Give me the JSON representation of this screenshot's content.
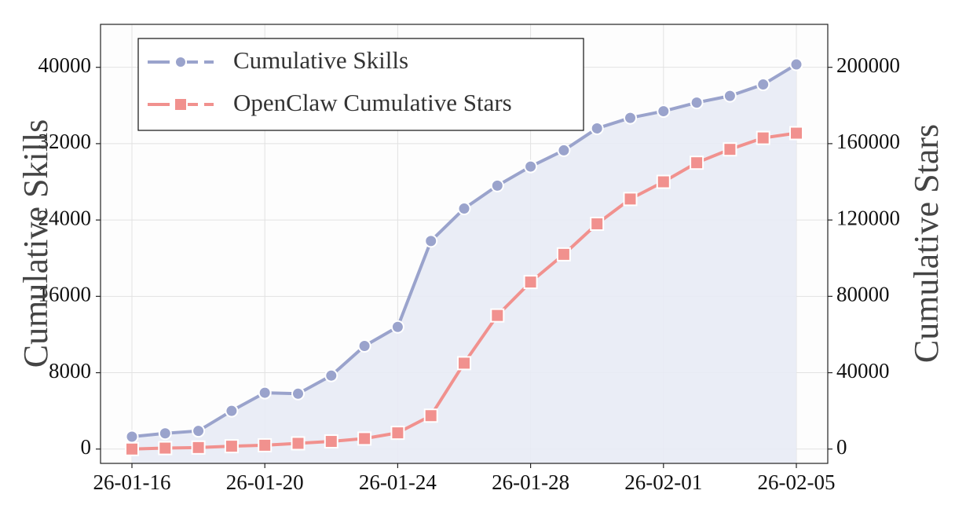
{
  "chart_data": {
    "type": "line",
    "x": [
      "26-01-16",
      "26-01-17",
      "26-01-18",
      "26-01-19",
      "26-01-20",
      "26-01-21",
      "26-01-22",
      "26-01-23",
      "26-01-24",
      "26-01-25",
      "26-01-26",
      "26-01-27",
      "26-01-28",
      "26-01-29",
      "26-01-30",
      "26-01-31",
      "26-02-01",
      "26-02-02",
      "26-02-03",
      "26-02-04",
      "26-02-05"
    ],
    "x_ticks": [
      "26-01-16",
      "26-01-20",
      "26-01-24",
      "26-01-28",
      "26-02-01",
      "26-02-05"
    ],
    "series": [
      {
        "name": "Cumulative Skills",
        "axis": "left",
        "marker": "circle",
        "color": "#9aa3cc",
        "fill": "#e8ebf5",
        "values": [
          1300,
          1650,
          1900,
          4000,
          5900,
          5800,
          7700,
          10800,
          12800,
          21800,
          25200,
          27600,
          29600,
          31300,
          33600,
          34700,
          35400,
          36300,
          37000,
          38200,
          40300
        ]
      },
      {
        "name": "OpenClaw Cumulative Stars",
        "axis": "right",
        "marker": "square",
        "color": "#f1918e",
        "values": [
          0,
          500,
          800,
          1500,
          2000,
          3000,
          4000,
          5500,
          8500,
          17500,
          45000,
          70000,
          87500,
          102000,
          118000,
          131000,
          140000,
          150000,
          157000,
          163000,
          165500
        ]
      }
    ],
    "y_left": {
      "label": "Cumulative Skills",
      "ticks": [
        0,
        8000,
        16000,
        24000,
        32000,
        40000
      ],
      "lim": [
        -1500,
        44500
      ]
    },
    "y_right": {
      "label": "Cumulative Stars",
      "ticks": [
        0,
        40000,
        80000,
        120000,
        160000,
        200000
      ],
      "lim": [
        -7500,
        222500
      ]
    },
    "grid": true,
    "legend": "top-left"
  }
}
